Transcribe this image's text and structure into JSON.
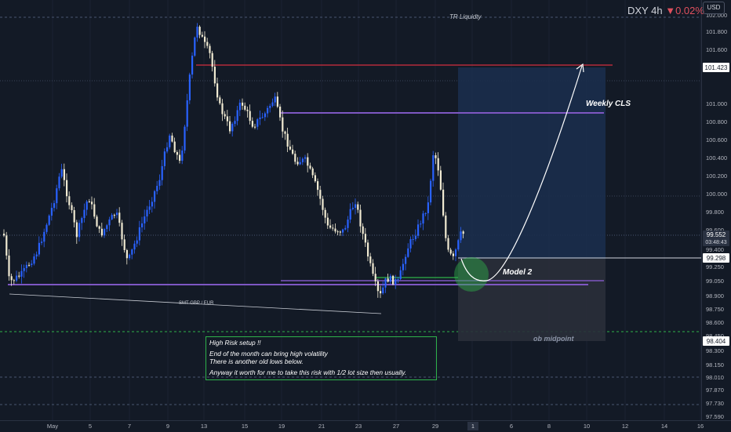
{
  "header": {
    "symbol": "DXY",
    "timeframe": "4h",
    "change_arrow": "▼",
    "change": "0.02%",
    "currency_button": "USD"
  },
  "colors": {
    "background": "#131a26",
    "bull_candle": "#2962ff",
    "bear_candle": "#f0ead2",
    "red_line": "#d32f3f",
    "purple_line": "#7e57c2",
    "green_box": "#2fb24a"
  },
  "price_axis": {
    "labels": [
      "102.000",
      "101.800",
      "101.600",
      "101.200",
      "101.000",
      "100.800",
      "100.600",
      "100.400",
      "100.200",
      "100.000",
      "99.800",
      "99.600",
      "99.400",
      "99.250",
      "99.050",
      "98.900",
      "98.750",
      "98.600",
      "98.450",
      "98.300",
      "98.150",
      "98.010",
      "97.870",
      "97.730",
      "97.590"
    ],
    "badges": {
      "upper_level": "101.423",
      "last_price": "99.552",
      "countdown": "03:48:43",
      "level_2": "99.298",
      "lower_level": "98.404"
    }
  },
  "time_axis": {
    "labels": [
      "May",
      "5",
      "7",
      "9",
      "13",
      "15",
      "19",
      "21",
      "23",
      "27",
      "29",
      "Jun",
      "6",
      "8",
      "10",
      "12",
      "14",
      "16"
    ],
    "cursor_label": "1"
  },
  "annotations": {
    "tr_liquidity": "TR Liquidty",
    "weekly_cls": "Weekly CLS",
    "model_2": "Model 2",
    "smt": "SMT GBP / EUR",
    "ob_midpoint": "ob midpoint"
  },
  "note": {
    "title": "High Risk setup !!",
    "line1": "End of the month can bring high volatility",
    "line2": "There is another old lows below.",
    "line3": "Anyway it worth for me to take this risk with 1/2 lot size then usually."
  }
}
